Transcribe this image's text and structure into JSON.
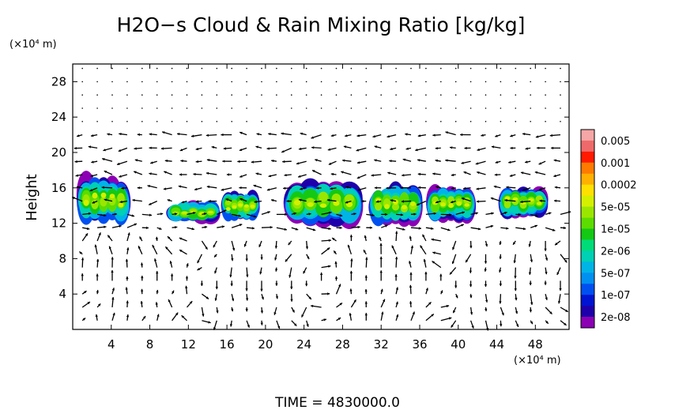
{
  "chart_data": {
    "type": "heatmap",
    "title": "H2O−s Cloud & Rain Mixing Ratio [kg/kg]",
    "ylabel": "Height",
    "x_unit_label": "(×10⁴ m)",
    "y_unit_label": "(×10⁴ m)",
    "time_label": "TIME  =  4830000.0",
    "xlim": [
      0,
      51.5
    ],
    "ylim": [
      0,
      30
    ],
    "x_ticks": [
      4,
      8,
      12,
      16,
      20,
      24,
      28,
      32,
      36,
      40,
      44,
      48
    ],
    "y_ticks": [
      4,
      8,
      12,
      16,
      20,
      24,
      28
    ],
    "colorbar": {
      "labels": [
        "0.005",
        "0.001",
        "0.0002",
        "5e-05",
        "1e-05",
        "2e-06",
        "5e-07",
        "1e-07",
        "2e-08"
      ],
      "colors": [
        "#f5a6a6",
        "#ee6a6a",
        "#ff1a00",
        "#ff7a00",
        "#ffb000",
        "#ffe000",
        "#d4f000",
        "#9ae600",
        "#5cdc00",
        "#14c814",
        "#00dc78",
        "#00d0b4",
        "#00b4e6",
        "#0090f0",
        "#0050f0",
        "#0014d2",
        "#1e00aa",
        "#8c00b4"
      ]
    },
    "cloud_regions": [
      {
        "x_range": [
          0.2,
          6.2
        ],
        "y_range": [
          12.5,
          17.3
        ]
      },
      {
        "x_range": [
          9.5,
          15.5
        ],
        "y_range": [
          12.3,
          14.4
        ]
      },
      {
        "x_range": [
          15.3,
          19.5
        ],
        "y_range": [
          12.6,
          15.6
        ]
      },
      {
        "x_range": [
          21.5,
          30.5
        ],
        "y_range": [
          12.4,
          17.0
        ]
      },
      {
        "x_range": [
          30.5,
          36.5
        ],
        "y_range": [
          12.3,
          16.4
        ]
      },
      {
        "x_range": [
          36.5,
          42.0
        ],
        "y_range": [
          12.6,
          16.2
        ]
      },
      {
        "x_range": [
          44.0,
          49.5
        ],
        "y_range": [
          13.0,
          16.2
        ]
      }
    ],
    "vector_field": "wind vectors shown at grid points across the domain"
  }
}
